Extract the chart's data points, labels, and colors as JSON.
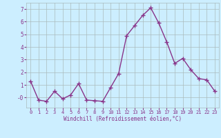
{
  "xlabel": "Windchill (Refroidissement éolien,°C)",
  "x": [
    0,
    1,
    2,
    3,
    4,
    5,
    6,
    7,
    8,
    9,
    10,
    11,
    12,
    13,
    14,
    15,
    16,
    17,
    18,
    19,
    20,
    21,
    22,
    23
  ],
  "y": [
    1.3,
    -0.2,
    -0.3,
    0.5,
    -0.1,
    0.2,
    1.1,
    -0.2,
    -0.25,
    -0.3,
    0.8,
    1.9,
    4.9,
    5.7,
    6.5,
    7.1,
    5.9,
    4.4,
    2.7,
    3.1,
    2.2,
    1.5,
    1.4,
    0.5
  ],
  "line_color": "#883388",
  "marker": "+",
  "marker_size": 4,
  "bg_color": "#cceeff",
  "grid_color": "#aabbbb",
  "ylim": [
    -0.8,
    7.5
  ],
  "xlim": [
    -0.5,
    23.5
  ],
  "yticks": [
    0,
    1,
    2,
    3,
    4,
    5,
    6,
    7
  ],
  "ytick_labels": [
    "-0",
    "1",
    "2",
    "3",
    "4",
    "5",
    "6",
    "7"
  ],
  "xticks": [
    0,
    1,
    2,
    3,
    4,
    5,
    6,
    7,
    8,
    9,
    10,
    11,
    12,
    13,
    14,
    15,
    16,
    17,
    18,
    19,
    20,
    21,
    22,
    23
  ],
  "tick_label_color": "#883388",
  "tick_label_size": 5.0,
  "xlabel_size": 5.5,
  "xlabel_color": "#883388",
  "line_width": 1.0,
  "fig_width": 3.2,
  "fig_height": 2.0,
  "dpi": 100
}
